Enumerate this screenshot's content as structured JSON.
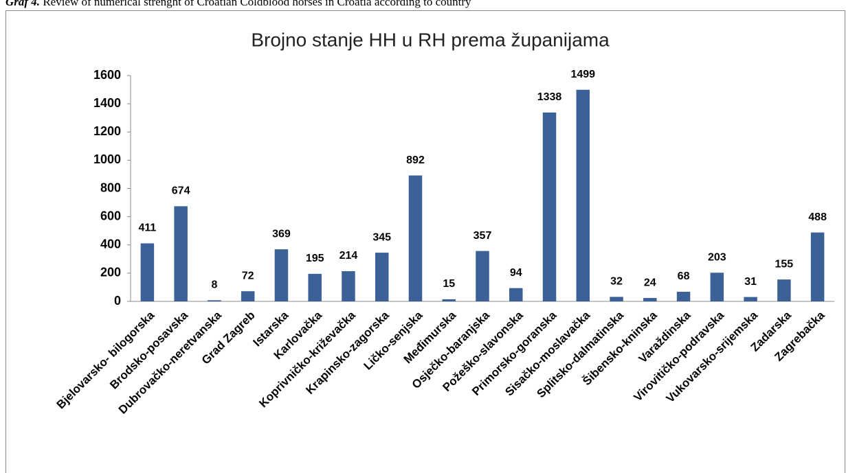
{
  "caption": {
    "label": "Graf 4.",
    "text": "Review of numerical strenght of Croatian Coldblood horses in Croatia according to country"
  },
  "chart_data": {
    "type": "bar",
    "title": "Brojno stanje HH u RH prema županijama",
    "categories": [
      "Bjelovarsko- bilogorska",
      "Brodsko-posavska",
      "Dubrovačko-neretvanska",
      "Grad Zagreb",
      "Istarska",
      "Karlovačka",
      "Koprivničko-križevačka",
      "Krapinsko-zagorska",
      "Ličko-senjska",
      "Međimurska",
      "Osječko-baranjska",
      "Požeško-slavonska",
      "Primorsko-goranska",
      "Sisačko-moslavačka",
      "Splitsko-dalmatinska",
      "Šibensko-kninska",
      "Varaždinska",
      "Virovitičko-podravska",
      "Vukovarsko-srijemska",
      "Zadarska",
      "Zagrebačka"
    ],
    "values": [
      411,
      674,
      8,
      72,
      369,
      195,
      214,
      345,
      892,
      15,
      357,
      94,
      1338,
      1499,
      32,
      24,
      68,
      203,
      31,
      155,
      488
    ],
    "color": "#3b6196",
    "ylim": [
      0,
      1600
    ],
    "yticks": [
      0,
      200,
      400,
      600,
      800,
      1000,
      1200,
      1400,
      1600
    ],
    "grid": false
  }
}
